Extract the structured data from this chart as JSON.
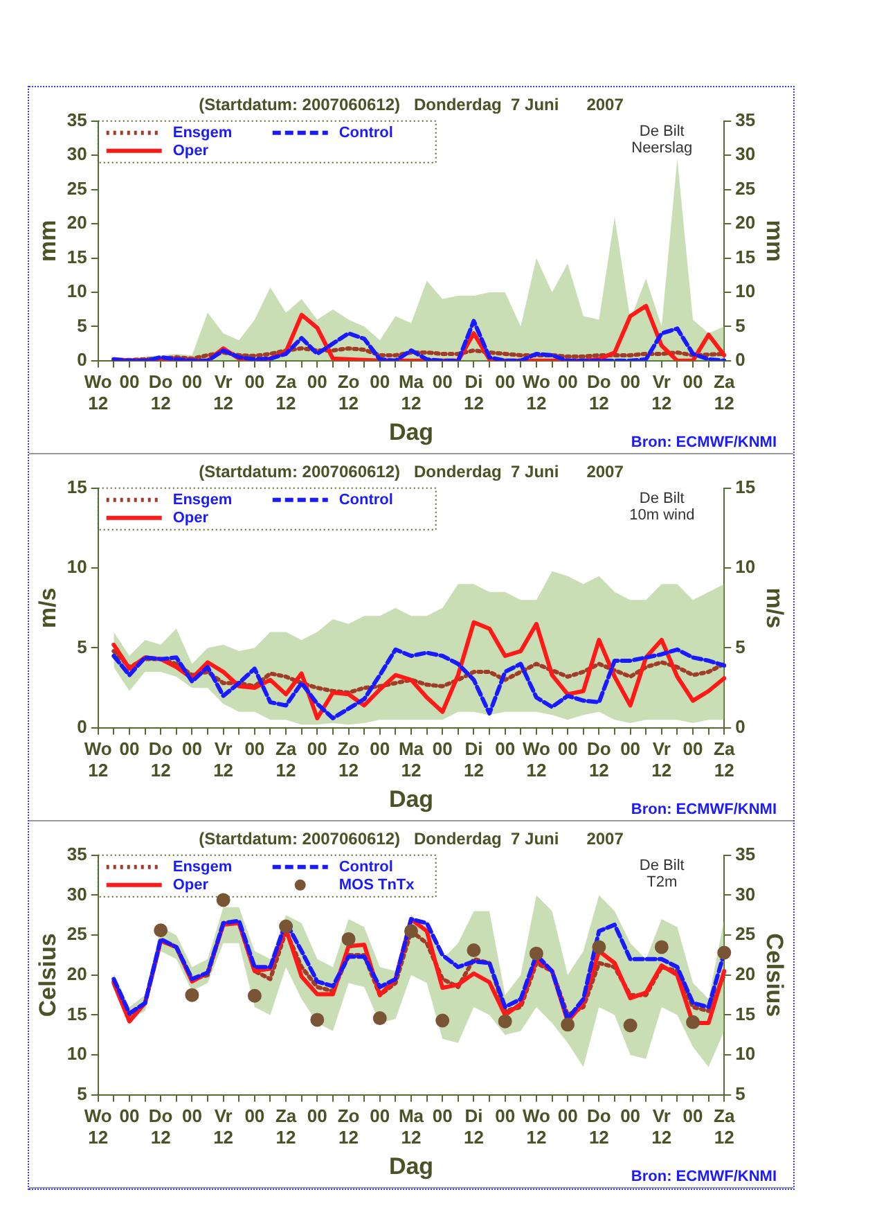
{
  "chart_data": [
    {
      "type": "line",
      "title": "(Startdatum: 2007060612)   Donderdag  7 Juni      2007",
      "xlabel": "Dag",
      "ylabel": "mm",
      "y2label": "mm",
      "annotations": [
        "De Bilt",
        "Neerslag",
        "Bron: ECMWF/KNMI"
      ],
      "legend": "top left",
      "grid": false,
      "marker": "none",
      "categories": [
        "Wo\n12",
        null,
        "00",
        null,
        "Do\n12",
        null,
        "00",
        null,
        "Vr\n12",
        null,
        "00",
        null,
        "Za\n12",
        null,
        "00",
        null,
        "Zo\n12",
        null,
        "00",
        null,
        "Ma\n12",
        null,
        "00",
        null,
        "Di\n12",
        null,
        "00",
        null,
        "Wo\n12",
        null,
        "00",
        null,
        "Do\n12",
        null,
        "00",
        null,
        "Vr\n12",
        null,
        "00",
        null,
        "Za\n12"
      ],
      "ylim": [
        0,
        35
      ],
      "yticks": [
        0,
        5,
        10,
        15,
        20,
        25,
        30,
        35
      ],
      "y2lim": [
        0,
        35
      ],
      "y2ticks": [
        0,
        5,
        10,
        15,
        20,
        25,
        30,
        35
      ],
      "series": [
        {
          "name": "Ensgem",
          "color": "#a03c28",
          "line_style": "dotted",
          "values": [
            null,
            0.1,
            0.1,
            0.2,
            0.3,
            0.5,
            0.3,
            0.8,
            1.2,
            0.8,
            0.7,
            1.0,
            1.5,
            1.8,
            1.5,
            1.5,
            1.8,
            1.6,
            0.8,
            0.8,
            1.2,
            1.2,
            1.0,
            1.0,
            1.5,
            1.2,
            1.0,
            0.8,
            0.8,
            0.8,
            0.6,
            0.6,
            0.8,
            0.8,
            0.8,
            1.0,
            1.0,
            1.2,
            0.8,
            0.9,
            1.0
          ],
          "lower": [
            null,
            0,
            0,
            0,
            0,
            0,
            0,
            0,
            0,
            0,
            0,
            0,
            0,
            0,
            0,
            0,
            0,
            0,
            0,
            0,
            0,
            0,
            0,
            0,
            0,
            0,
            0,
            0,
            0,
            0,
            0,
            0,
            0,
            0,
            0,
            0,
            0,
            0,
            0,
            0,
            0
          ],
          "upper": [
            null,
            0.3,
            0.3,
            0.6,
            0.8,
            1.0,
            0.8,
            7.0,
            4,
            3,
            6,
            10.7,
            7,
            9,
            6,
            7.5,
            6,
            5,
            3,
            6.5,
            5.5,
            11.7,
            9,
            9.5,
            9.5,
            10,
            10,
            5,
            15,
            10,
            14.2,
            6.5,
            6,
            21,
            6,
            12,
            5,
            29.5,
            6,
            4,
            5
          ]
        },
        {
          "name": "Control",
          "color": "#1a1aff",
          "line_style": "dashed",
          "values": [
            null,
            0.2,
            0,
            0,
            0.5,
            0.2,
            0,
            0,
            1.5,
            0.5,
            0.2,
            0.3,
            1.0,
            3.3,
            1.0,
            2.5,
            4.0,
            3.2,
            0.2,
            0,
            1.5,
            0.2,
            0,
            0,
            5.8,
            0.5,
            0,
            0,
            1.0,
            0.8,
            0,
            0,
            0,
            0,
            0,
            0.2,
            4.0,
            4.7,
            1.0,
            0.2,
            0
          ]
        },
        {
          "name": "Oper",
          "color": "#ff1a1a",
          "line_style": "solid",
          "values": [
            null,
            0.2,
            0,
            0,
            0.2,
            0.2,
            0,
            0,
            1.8,
            0.3,
            0,
            0.3,
            1.3,
            6.7,
            4.8,
            0.3,
            0.2,
            0.1,
            0,
            0,
            0,
            0,
            0,
            0,
            4.0,
            0.2,
            0,
            0,
            0,
            0,
            0,
            0,
            0.2,
            1.2,
            6.5,
            8.0,
            2.2,
            0,
            0,
            3.8,
            0.8
          ]
        }
      ]
    },
    {
      "type": "line",
      "title": "(Startdatum: 2007060612)   Donderdag  7 Juni      2007",
      "xlabel": "Dag",
      "ylabel": "m/s",
      "y2label": "m/s",
      "annotations": [
        "De Bilt",
        "10m wind",
        "Bron: ECMWF/KNMI"
      ],
      "legend": "top left",
      "grid": false,
      "marker": "none",
      "categories": [
        "Wo\n12",
        null,
        "00",
        null,
        "Do\n12",
        null,
        "00",
        null,
        "Vr\n12",
        null,
        "00",
        null,
        "Za\n12",
        null,
        "00",
        null,
        "Zo\n12",
        null,
        "00",
        null,
        "Ma\n12",
        null,
        "00",
        null,
        "Di\n12",
        null,
        "00",
        null,
        "Wo\n12",
        null,
        "00",
        null,
        "Do\n12",
        null,
        "00",
        null,
        "Vr\n12",
        null,
        "00",
        null,
        "Za\n12"
      ],
      "ylim": [
        0,
        15
      ],
      "yticks": [
        0,
        5,
        10,
        15
      ],
      "y2lim": [
        0,
        15
      ],
      "y2ticks": [
        0,
        5,
        10,
        15
      ],
      "series": [
        {
          "name": "Ensgem",
          "color": "#a03c28",
          "line_style": "dotted",
          "values": [
            null,
            4.8,
            3.8,
            4.3,
            4.3,
            4.0,
            3.3,
            3.5,
            2.8,
            2.8,
            2.6,
            3.4,
            3.2,
            2.8,
            2.5,
            2.3,
            2.2,
            2.5,
            2.6,
            2.8,
            3.0,
            2.7,
            2.6,
            3.0,
            3.5,
            3.5,
            3.0,
            3.5,
            4.0,
            3.6,
            3.2,
            3.5,
            4.0,
            3.6,
            3.2,
            3.8,
            4.1,
            3.8,
            3.3,
            3.5,
            4.0
          ],
          "lower": [
            null,
            3.8,
            2.3,
            3.5,
            3.5,
            3.2,
            2.5,
            2.5,
            1.5,
            1,
            1,
            0.5,
            0.5,
            0.2,
            0.2,
            0.3,
            0.2,
            0.3,
            0.5,
            0.5,
            0.5,
            0.5,
            0.5,
            1,
            1,
            0.8,
            1,
            1,
            1,
            0.8,
            0.5,
            0.8,
            1,
            0.5,
            0.3,
            0.5,
            0.5,
            0.5,
            0.3,
            0.5,
            0.5
          ],
          "upper": [
            null,
            6.0,
            4.5,
            5.5,
            5.2,
            6.2,
            4,
            5,
            5.2,
            4.8,
            5,
            6,
            6,
            5.5,
            6,
            6.8,
            6.5,
            7,
            7,
            7.5,
            7,
            7,
            7.5,
            9,
            9,
            8.5,
            8.5,
            8,
            8,
            9.8,
            9.5,
            9,
            9.5,
            8.5,
            8,
            8,
            9,
            9,
            8,
            8.5,
            9
          ]
        },
        {
          "name": "Control",
          "color": "#1a1aff",
          "line_style": "dashed",
          "values": [
            null,
            4.5,
            3.3,
            4.4,
            4.3,
            4.4,
            2.9,
            3.8,
            2.0,
            2.8,
            3.7,
            1.6,
            1.4,
            2.8,
            1.5,
            0.6,
            1.2,
            1.8,
            3.3,
            4.9,
            4.5,
            4.7,
            4.5,
            4.0,
            3.0,
            0.9,
            3.5,
            4.0,
            1.9,
            1.3,
            2.0,
            1.7,
            1.6,
            4.2,
            4.2,
            4.4,
            4.6,
            4.9,
            4.4,
            4.2,
            3.9
          ]
        },
        {
          "name": "Oper",
          "color": "#ff1a1a",
          "line_style": "solid",
          "values": [
            null,
            5.2,
            3.7,
            4.4,
            4.3,
            3.8,
            3.1,
            4.1,
            3.5,
            2.6,
            2.5,
            3.0,
            2.1,
            3.4,
            0.6,
            2.2,
            2.1,
            1.4,
            2.4,
            3.3,
            3.0,
            1.9,
            1.0,
            3.3,
            6.6,
            6.2,
            4.5,
            4.8,
            6.5,
            3.3,
            2.1,
            2.3,
            5.5,
            3.2,
            1.4,
            4.4,
            5.5,
            3.2,
            1.7,
            2.3,
            3.1
          ]
        }
      ]
    },
    {
      "type": "line",
      "title": "(Startdatum: 2007060612)   Donderdag  7 Juni      2007",
      "xlabel": "Dag",
      "ylabel": "Celsius",
      "y2label": "Celsius",
      "annotations": [
        "De Bilt",
        "T2m",
        "Bron: ECMWF/KNMI"
      ],
      "legend": "top left",
      "grid": false,
      "marker": "none",
      "categories": [
        "Wo\n12",
        null,
        "00",
        null,
        "Do\n12",
        null,
        "00",
        null,
        "Vr\n12",
        null,
        "00",
        null,
        "Za\n12",
        null,
        "00",
        null,
        "Zo\n12",
        null,
        "00",
        null,
        "Ma\n12",
        null,
        "00",
        null,
        "Di\n12",
        null,
        "00",
        null,
        "Wo\n12",
        null,
        "00",
        null,
        "Do\n12",
        null,
        "00",
        null,
        "Vr\n12",
        null,
        "00",
        null,
        "Za\n12"
      ],
      "ylim": [
        5,
        35
      ],
      "yticks": [
        5,
        10,
        15,
        20,
        25,
        30,
        35
      ],
      "y2lim": [
        5,
        35
      ],
      "y2ticks": [
        5,
        10,
        15,
        20,
        25,
        30,
        35
      ],
      "series": [
        {
          "name": "Ensgem",
          "color": "#a03c28",
          "line_style": "dotted",
          "values": [
            null,
            19.2,
            15,
            16.5,
            24.3,
            23.5,
            19.5,
            20,
            26.5,
            26.5,
            20.5,
            19.5,
            25.5,
            21,
            18.5,
            18,
            22.5,
            22.5,
            17.5,
            19,
            25.5,
            24,
            19.5,
            18.5,
            22,
            21.5,
            15.5,
            16,
            21.5,
            20.5,
            15,
            16,
            21.5,
            21,
            17.5,
            17.5,
            21,
            20.5,
            16,
            15.5,
            20
          ],
          "lower": [
            null,
            18.5,
            14.5,
            15.5,
            23,
            22,
            18,
            19,
            24,
            24,
            16,
            15,
            21,
            17,
            14,
            13,
            19,
            18.5,
            14,
            14.5,
            20,
            19,
            12,
            11.5,
            16,
            15,
            12.5,
            13,
            16,
            14,
            11.5,
            8.5,
            16,
            15,
            10,
            9.5,
            16,
            15,
            11,
            8.5,
            13
          ],
          "upper": [
            null,
            20.2,
            16,
            17.5,
            26,
            25,
            21,
            22,
            28.5,
            28.5,
            23,
            22,
            27.5,
            26.5,
            22,
            21,
            27,
            26,
            21,
            20.5,
            27.5,
            26,
            22,
            24,
            28,
            28,
            17.5,
            20,
            30,
            28,
            20,
            23,
            30,
            28,
            24,
            22,
            27,
            26,
            19,
            17,
            27
          ]
        },
        {
          "name": "Control",
          "color": "#1a1aff",
          "line_style": "dashed",
          "values": [
            null,
            19.5,
            15.2,
            16.5,
            24.5,
            23.5,
            19.5,
            20.3,
            26.5,
            26.8,
            21,
            21,
            26.6,
            23,
            19.2,
            18.6,
            22.3,
            22.3,
            18.5,
            19.5,
            27,
            26.5,
            22.5,
            21,
            21.7,
            21.5,
            16,
            17,
            22.5,
            20.5,
            14.5,
            17,
            25.5,
            26.3,
            22,
            22,
            22,
            21,
            16.5,
            16,
            22.8
          ]
        },
        {
          "name": "Oper",
          "color": "#ff1a1a",
          "line_style": "solid",
          "values": [
            null,
            19,
            14.2,
            16.5,
            24.3,
            23.5,
            19.2,
            20.3,
            26.3,
            26.5,
            20.5,
            20.8,
            25.8,
            19.8,
            17.6,
            17.6,
            23.6,
            23.8,
            17.5,
            19.5,
            27,
            25.5,
            18.4,
            18.8,
            20.2,
            19.1,
            15,
            16.4,
            22,
            20.5,
            14.2,
            16.5,
            23,
            21.5,
            17.1,
            17.8,
            21.2,
            20,
            14,
            14,
            20.5
          ]
        },
        {
          "name": "MOS TnTx",
          "type": "scatter",
          "color": "#7a5535",
          "marker": "circle",
          "values": [
            null,
            null,
            null,
            null,
            25.6,
            null,
            17.5,
            null,
            29.4,
            null,
            17.4,
            null,
            26.1,
            null,
            14.4,
            null,
            24.5,
            null,
            14.6,
            null,
            25.5,
            null,
            14.3,
            null,
            23.1,
            null,
            14.2,
            null,
            22.7,
            null,
            13.8,
            null,
            23.5,
            null,
            13.7,
            null,
            23.5,
            null,
            14.1,
            null,
            22.8
          ]
        }
      ]
    }
  ]
}
